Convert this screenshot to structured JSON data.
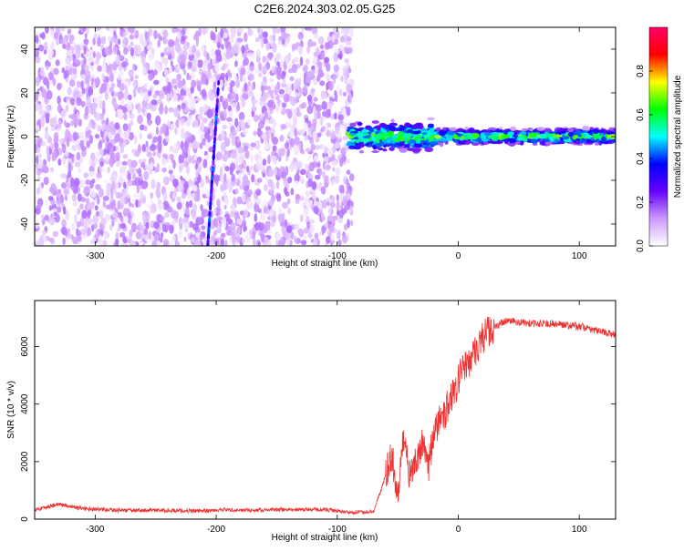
{
  "title": "C2E6.2024.303.02.05.G25",
  "chart_data": [
    {
      "type": "heatmap",
      "xlabel": "Height of straight line (km)",
      "ylabel": "Frequency (Hz)",
      "xlim": [
        -350,
        130
      ],
      "ylim": [
        -50,
        50
      ],
      "xticks": [
        -300,
        -200,
        -100,
        0,
        100
      ],
      "yticks": [
        -40,
        -20,
        0,
        20,
        40
      ],
      "colorbar": {
        "label": "Normalized spectral amplitude",
        "range": [
          0,
          1
        ],
        "ticks": [
          0.0,
          0.2,
          0.4,
          0.6,
          0.8
        ],
        "tick_labels": [
          "0.0",
          "0.2",
          "0.4",
          "0.6",
          "0.8"
        ],
        "colormap": [
          "#ffffff",
          "#cc99ff",
          "#6600ff",
          "#0000ff",
          "#00ffff",
          "#00ff00",
          "#ffff00",
          "#ff0000",
          "#ff0066"
        ]
      },
      "regions": [
        {
          "name": "noise",
          "x_range": [
            -350,
            -88
          ],
          "y_range": [
            -50,
            50
          ],
          "amplitude": 0.1
        },
        {
          "name": "faint-track",
          "x_range": [
            -207,
            -198
          ],
          "y_range": [
            -50,
            25
          ],
          "amplitude": 0.3
        },
        {
          "name": "signal",
          "x_range": [
            -90,
            130
          ],
          "y_center": 0,
          "amplitude": 0.6
        }
      ]
    },
    {
      "type": "line",
      "xlabel": "Height of straight line (km)",
      "ylabel": "SNR (10 * v/v)",
      "xlim": [
        -350,
        130
      ],
      "ylim": [
        0,
        7600
      ],
      "xticks": [
        -300,
        -200,
        -100,
        0,
        100
      ],
      "yticks": [
        0,
        2000,
        4000,
        6000
      ],
      "series": [
        {
          "color": "#ee3333",
          "x": [
            -350,
            -330,
            -310,
            -290,
            -270,
            -250,
            -230,
            -210,
            -190,
            -170,
            -150,
            -130,
            -110,
            -90,
            -70,
            -60,
            -55,
            -50,
            -45,
            -40,
            -35,
            -30,
            -25,
            -20,
            -15,
            -10,
            -5,
            0,
            10,
            20,
            30,
            40,
            50,
            60,
            70,
            80,
            90,
            100,
            110,
            120,
            130
          ],
          "values": [
            320,
            520,
            360,
            320,
            300,
            310,
            290,
            290,
            330,
            310,
            330,
            340,
            330,
            240,
            260,
            1500,
            2300,
            700,
            2900,
            1500,
            1900,
            2700,
            1700,
            3100,
            3400,
            3800,
            4200,
            4900,
            5600,
            6300,
            6700,
            6900,
            6850,
            6800,
            6800,
            6800,
            6750,
            6700,
            6600,
            6500,
            6400
          ]
        }
      ]
    }
  ]
}
